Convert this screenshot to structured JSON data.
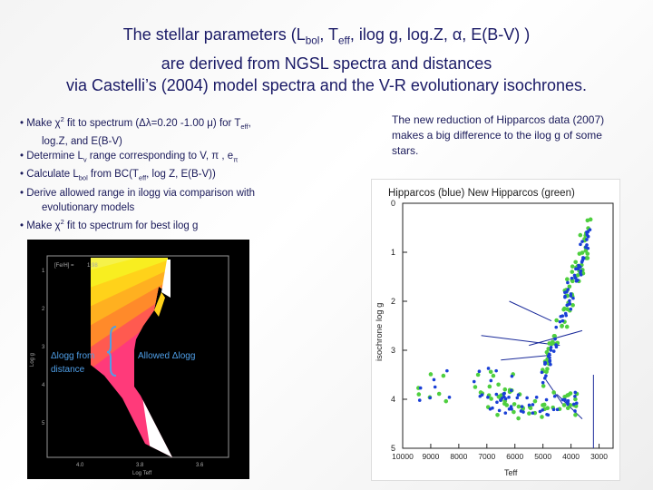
{
  "title": {
    "line1_a": "The stellar parameters (L",
    "line1_bol": "bol",
    "line1_b": ",  T",
    "line1_eff": "eff",
    "line1_c": ", ilog g, log.Z, α, E(B-V) )",
    "line2": "are derived from NGSL spectra and distances",
    "line3": "via Castelli’s (2004) model spectra and the V-R evolutionary isochrones."
  },
  "bullets": {
    "b1_a": "• Make χ",
    "b1_sup": "2",
    "b1_b": " fit to spectrum (Δλ=0.20 -1.00 μ) for T",
    "b1_sub": "eff",
    "b1_c": ",",
    "b1_cont": "log.Z, and E(B-V)",
    "b2_a": "• Determine L",
    "b2_sub": "v",
    "b2_b": " range corresponding to V, π , e",
    "b2_sub2": "π",
    "b3_a": "• Calculate L",
    "b3_sub": "bol",
    "b3_b": " from BC(T",
    "b3_sub2": "eff",
    "b3_c": ", log Z, E(B-V))",
    "b4": "• Derive allowed range in ilogg via comparison with",
    "b4_cont": "evolutionary models",
    "b5_a": "• Make χ",
    "b5_sup": "2",
    "b5_b": " fit to spectrum for best ilog g"
  },
  "right_note": "The new reduction of Hipparcos data (2007) makes a big difference to the ilog g of some stars.",
  "left_plot": {
    "feh_label": "[Fe/H] =",
    "feh_value": "1.98",
    "ylabel": "Log g",
    "xlabel": "Log Teff",
    "y_ticks": [
      "1",
      "2",
      "3",
      "4",
      "5"
    ],
    "x_ticks": [
      "4.0",
      "3.8",
      "3.6"
    ],
    "annot_left": [
      "Δlogg from",
      "distance"
    ],
    "annot_right": "Allowed Δlogg",
    "colors": {
      "bg": "#000000",
      "annot": "#4f9fe8"
    }
  },
  "chart_data": {
    "type": "scatter",
    "title": "Hipparcos (blue)  New Hipparcos (green)",
    "xlabel": "Teff",
    "ylabel": "isochrone log g",
    "xlim": [
      10000,
      2500
    ],
    "ylim": [
      0,
      5
    ],
    "x_ticks": [
      10000,
      9000,
      8000,
      7000,
      6000,
      5000,
      4000,
      3000
    ],
    "y_ticks": [
      0,
      1,
      2,
      3,
      4,
      5
    ],
    "series": [
      {
        "name": "Hipparcos (blue)",
        "color": "#1a3fd6",
        "x": [],
        "y": []
      },
      {
        "name": "New Hipparcos (green)",
        "color": "#4fcf3f",
        "x": [],
        "y": []
      }
    ],
    "links": [
      [
        6200,
        2.0,
        4700,
        2.4
      ],
      [
        5500,
        2.9,
        3600,
        2.6
      ],
      [
        7200,
        2.7,
        4400,
        2.9
      ],
      [
        6500,
        3.2,
        4700,
        3.1
      ],
      [
        4900,
        3.6,
        4300,
        4.1
      ],
      [
        3200,
        3.5,
        3200,
        5.0
      ],
      [
        4500,
        3.9,
        3600,
        4.4
      ]
    ],
    "linklabel": "connecting lines"
  }
}
